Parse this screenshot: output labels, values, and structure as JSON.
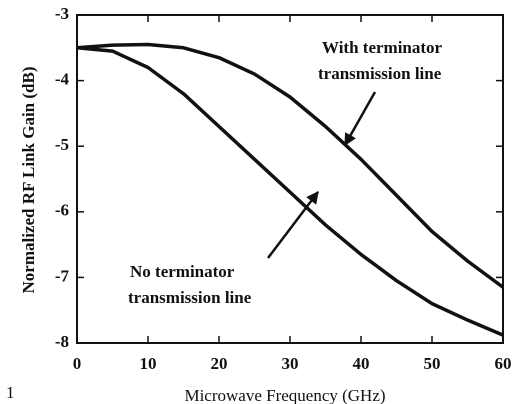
{
  "chart_data": {
    "type": "line",
    "xlabel": "Microwave Frequency (GHz)",
    "ylabel": "Normalized RF Link Gain (dB)",
    "corner_label": "1",
    "x": [
      0,
      5,
      10,
      15,
      20,
      25,
      30,
      35,
      40,
      45,
      50,
      55,
      60
    ],
    "series": [
      {
        "name": "With terminator transmission line",
        "color": "#111111",
        "values": [
          -3.5,
          -3.46,
          -3.45,
          -3.5,
          -3.65,
          -3.9,
          -4.25,
          -4.7,
          -5.2,
          -5.75,
          -6.3,
          -6.75,
          -7.15
        ]
      },
      {
        "name": "No terminator transmission line",
        "color": "#111111",
        "values": [
          -3.5,
          -3.55,
          -3.8,
          -4.2,
          -4.7,
          -5.2,
          -5.7,
          -6.2,
          -6.65,
          -7.05,
          -7.4,
          -7.65,
          -7.88
        ]
      }
    ],
    "annotations": [
      {
        "lines": [
          "With terminator",
          "transmission line"
        ]
      },
      {
        "lines": [
          "No terminator",
          "transmission line"
        ]
      }
    ],
    "xlim": [
      0,
      60
    ],
    "xticks": [
      0,
      10,
      20,
      30,
      40,
      50,
      60
    ],
    "ylim": [
      -8,
      -3
    ],
    "yticks": [
      -3,
      -4,
      -5,
      -6,
      -7,
      -8
    ]
  }
}
